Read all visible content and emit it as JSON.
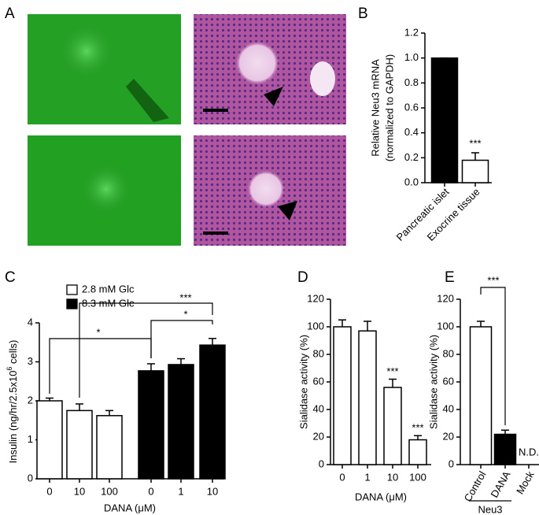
{
  "figure_a": {
    "panel": "A"
  },
  "chart_data": [
    {
      "panel": "B",
      "type": "bar",
      "ylabel": [
        "Relative Neu3 mRNA",
        "(normalized to GAPDH)"
      ],
      "categories": [
        "Pancreatic islet",
        "Exocrine tissue"
      ],
      "series": [
        {
          "colors": [
            "#000000",
            "#ffffff"
          ],
          "values": [
            1.0,
            0.18
          ],
          "errors": [
            0,
            0.06
          ]
        }
      ],
      "annotations": [
        "***"
      ],
      "ylim": [
        0,
        1.2
      ],
      "yticks": [
        {
          "value": 0,
          "label": "0.0"
        },
        0.2,
        0.4,
        0.6,
        0.8,
        {
          "value": 1,
          "label": "1.0"
        },
        1.2
      ]
    },
    {
      "panel": "C",
      "type": "bar",
      "ylabel": [
        "Insulin (ng/hr/2.5x10",
        "6",
        " cells)"
      ],
      "xlabel": "DANA (μM)",
      "categories": [
        "0",
        "10",
        "100",
        "0",
        "1",
        "10"
      ],
      "series": [
        {
          "name": "2.8 mM Glc",
          "color": "#ffffff",
          "values": [
            2.0,
            1.75,
            1.62,
            null,
            null,
            null
          ],
          "errors": [
            0.07,
            0.17,
            0.13,
            null,
            null,
            null
          ]
        },
        {
          "name": "8.3 mM Glc",
          "color": "#000000",
          "values": [
            null,
            null,
            null,
            2.77,
            2.93,
            3.43
          ],
          "errors": [
            null,
            null,
            null,
            0.18,
            0.15,
            0.17
          ]
        }
      ],
      "annotations": [
        "*",
        "***",
        "*"
      ],
      "ylim": [
        0,
        4
      ],
      "yticks": [
        0,
        1,
        2,
        3,
        4
      ]
    },
    {
      "panel": "D",
      "type": "bar",
      "ylabel": [
        "Sialidase activity (%)"
      ],
      "xlabel": "DANA (μM)",
      "categories": [
        "0",
        "1",
        "10",
        "100"
      ],
      "series": [
        {
          "color": "#ffffff",
          "values": [
            100,
            97,
            56,
            18
          ],
          "errors": [
            5,
            7,
            6,
            3
          ]
        }
      ],
      "annotations": [
        "***",
        "***"
      ],
      "ylim": [
        0,
        120
      ],
      "yticks": [
        0,
        20,
        40,
        60,
        80,
        100,
        120
      ]
    },
    {
      "panel": "E",
      "type": "bar",
      "ylabel": [
        "Sialidase activity (%)"
      ],
      "group_label": "Neu3",
      "categories": [
        "Control",
        "DANA",
        "Mock"
      ],
      "series": [
        {
          "colors": [
            "#ffffff",
            "#000000",
            "#ffffff"
          ],
          "values": [
            100,
            22,
            null
          ],
          "errors": [
            4,
            3,
            null
          ]
        }
      ],
      "annotations": [
        "***",
        "N.D."
      ],
      "ylim": [
        0,
        120
      ],
      "yticks": [
        0,
        20,
        40,
        60,
        80,
        100,
        120
      ]
    }
  ]
}
